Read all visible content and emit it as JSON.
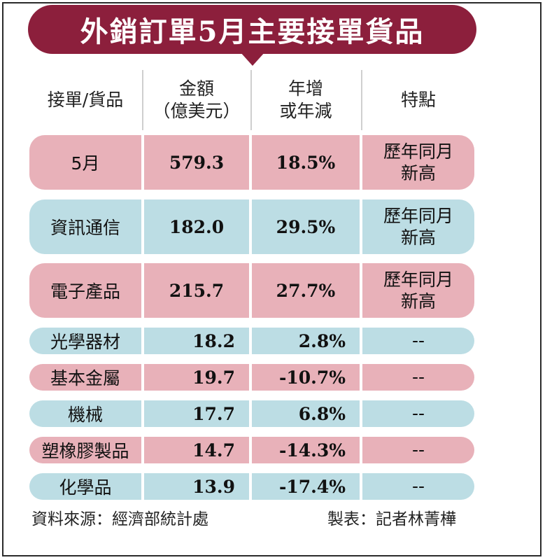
{
  "chart_data": {
    "type": "table",
    "title": "外銷訂單5月主要接單貨品",
    "columns": [
      "接單/貨品",
      "金額（億美元）",
      "年增或年減",
      "特點"
    ],
    "rows": [
      {
        "item": "5月",
        "amount": "579.3",
        "change": "18.5%",
        "feature": [
          "歷年同月",
          "新高"
        ],
        "color": "pink"
      },
      {
        "item": "資訊通信",
        "amount": "182.0",
        "change": "29.5%",
        "feature": [
          "歷年同月",
          "新高"
        ],
        "color": "blue"
      },
      {
        "item": "電子產品",
        "amount": "215.7",
        "change": "27.7%",
        "feature": [
          "歷年同月",
          "新高"
        ],
        "color": "pink"
      },
      {
        "item": "光學器材",
        "amount": "18.2",
        "change": "2.8%",
        "feature": [
          "--"
        ],
        "color": "blue"
      },
      {
        "item": "基本金屬",
        "amount": "19.7",
        "change": "-10.7%",
        "feature": [
          "--"
        ],
        "color": "pink"
      },
      {
        "item": "機械",
        "amount": "17.7",
        "change": "6.8%",
        "feature": [
          "--"
        ],
        "color": "blue"
      },
      {
        "item": "塑橡膠製品",
        "amount": "14.7",
        "change": "-14.3%",
        "feature": [
          "--"
        ],
        "color": "pink"
      },
      {
        "item": "化學品",
        "amount": "13.9",
        "change": "-17.4%",
        "feature": [
          "--"
        ],
        "color": "blue"
      }
    ]
  },
  "header": {
    "item": "接單/貨品",
    "amount_line1": "金額",
    "amount_line2": "（億美元）",
    "change_line1": "年增",
    "change_line2": "或年減",
    "feature": "特點"
  },
  "footer": {
    "source": "資料來源：經濟部統計處",
    "credit": "製表：記者林菁樺"
  },
  "colors": {
    "banner": "#8c1f3c",
    "pink_row": "#e8b1b9",
    "blue_row": "#bcdde4"
  }
}
